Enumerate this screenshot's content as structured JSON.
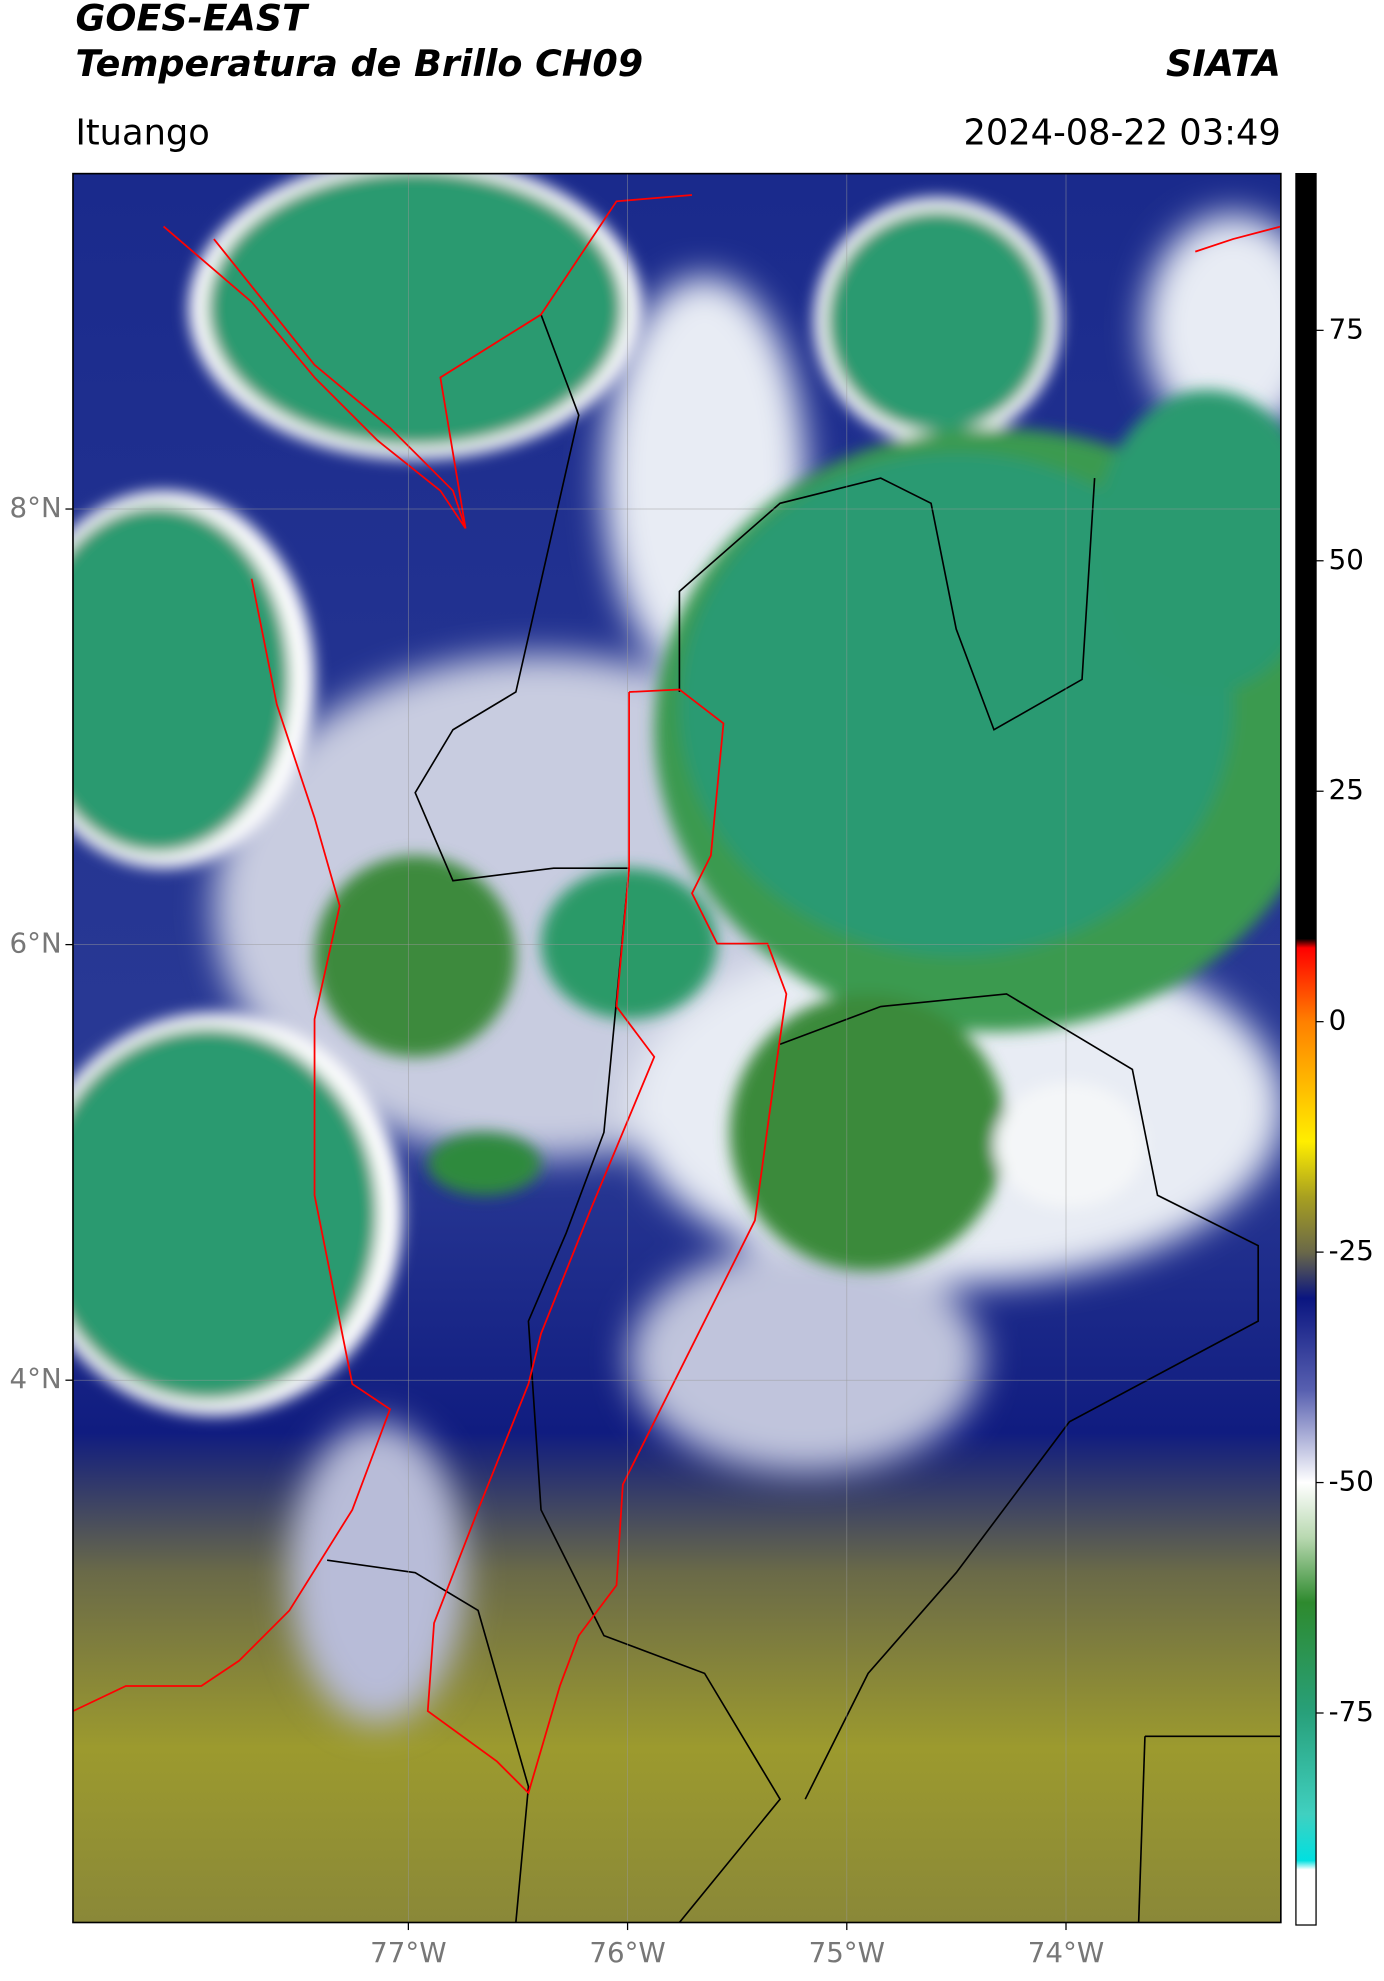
{
  "header": {
    "title": "GOES-EAST",
    "subtitle": "Temperatura de Brillo CH09",
    "brand": "SIATA",
    "location": "Ituango",
    "datetime": "2024-08-22 03:49"
  },
  "map": {
    "xlim": [
      -78.53,
      -73.02
    ],
    "ylim": [
      1.51,
      9.54
    ],
    "xticks": [
      {
        "value": -77,
        "label": "77°W"
      },
      {
        "value": -76,
        "label": "76°W"
      },
      {
        "value": -75,
        "label": "75°W"
      },
      {
        "value": -74,
        "label": "74°W"
      }
    ],
    "yticks": [
      {
        "value": 8,
        "label": "8°N"
      },
      {
        "value": 6,
        "label": "6°N"
      },
      {
        "value": 4,
        "label": "4°N"
      }
    ],
    "grid": true
  },
  "colorbar": {
    "lim": [
      -98,
      92
    ],
    "ticks": [
      75,
      50,
      25,
      0,
      -25,
      -50,
      -75
    ],
    "stops": [
      {
        "value": 92,
        "color": "#000000"
      },
      {
        "value": 9,
        "color": "#000000"
      },
      {
        "value": 8,
        "color": "#ff0000"
      },
      {
        "value": 0,
        "color": "#ff8000"
      },
      {
        "value": -13,
        "color": "#ffee00"
      },
      {
        "value": -19,
        "color": "#a8a020"
      },
      {
        "value": -25,
        "color": "#6a6848"
      },
      {
        "value": -30,
        "color": "#0a1580"
      },
      {
        "value": -40,
        "color": "#5860b0"
      },
      {
        "value": -50,
        "color": "#ffffff"
      },
      {
        "value": -56,
        "color": "#b8d8b0"
      },
      {
        "value": -63,
        "color": "#2e8a2e"
      },
      {
        "value": -75,
        "color": "#28a07a"
      },
      {
        "value": -86,
        "color": "#40d0c0"
      },
      {
        "value": -91,
        "color": "#00e0e0"
      },
      {
        "value": -92,
        "color": "#ffffff"
      },
      {
        "value": -98,
        "color": "#ffffff"
      }
    ]
  }
}
